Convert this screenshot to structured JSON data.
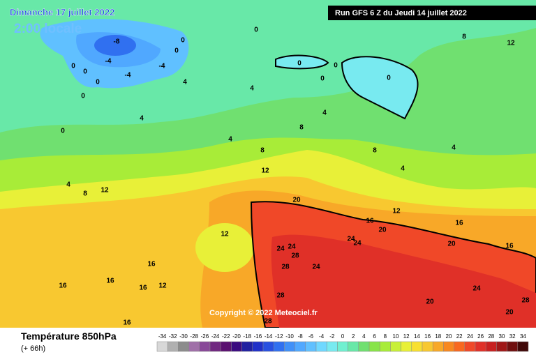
{
  "header": {
    "date": "Dimanche 17 juillet 2022",
    "time": "2:00 locale",
    "run": "Run GFS 6 Z du Jeudi 14 juillet 2022"
  },
  "copyright": "Copyright © 2022 Meteociel.fr",
  "footer": {
    "title": "Température 850hPa",
    "lead": "(+ 66h)"
  },
  "legend": {
    "ticks": [
      -34,
      -32,
      -30,
      -28,
      -26,
      -24,
      -22,
      -20,
      -18,
      -16,
      -14,
      -12,
      -10,
      -8,
      -6,
      -4,
      -2,
      0,
      2,
      4,
      6,
      8,
      10,
      12,
      14,
      16,
      18,
      20,
      22,
      24,
      26,
      28,
      30,
      32,
      34
    ],
    "colors": [
      "#d8d8d8",
      "#b0b0b0",
      "#8c8c8c",
      "#a070a8",
      "#884898",
      "#702880",
      "#5a1070",
      "#3a0a80",
      "#2020a0",
      "#2030c8",
      "#2850e0",
      "#3070f0",
      "#4090f8",
      "#50a8ff",
      "#60c0ff",
      "#70d8ff",
      "#78eaf0",
      "#70f0d0",
      "#68e8a8",
      "#70e070",
      "#88e448",
      "#a8ec38",
      "#c8f038",
      "#e8f038",
      "#f8e030",
      "#f8c830",
      "#f8a828",
      "#f88820",
      "#f86820",
      "#f04828",
      "#e03028",
      "#c82020",
      "#a01818",
      "#701010",
      "#400808"
    ]
  },
  "contour_labels": [
    -8,
    -4,
    -4,
    -4,
    0,
    0,
    0,
    0,
    0,
    0,
    0,
    0,
    0,
    0,
    0,
    0,
    4,
    4,
    4,
    4,
    4,
    4,
    4,
    4,
    8,
    8,
    8,
    8,
    8,
    12,
    12,
    12,
    12,
    12,
    12,
    20,
    20,
    20,
    20,
    16,
    16,
    16,
    16,
    16,
    16,
    16,
    16,
    24,
    24,
    24,
    24,
    24,
    24,
    28,
    28,
    28,
    28,
    28,
    20
  ]
}
